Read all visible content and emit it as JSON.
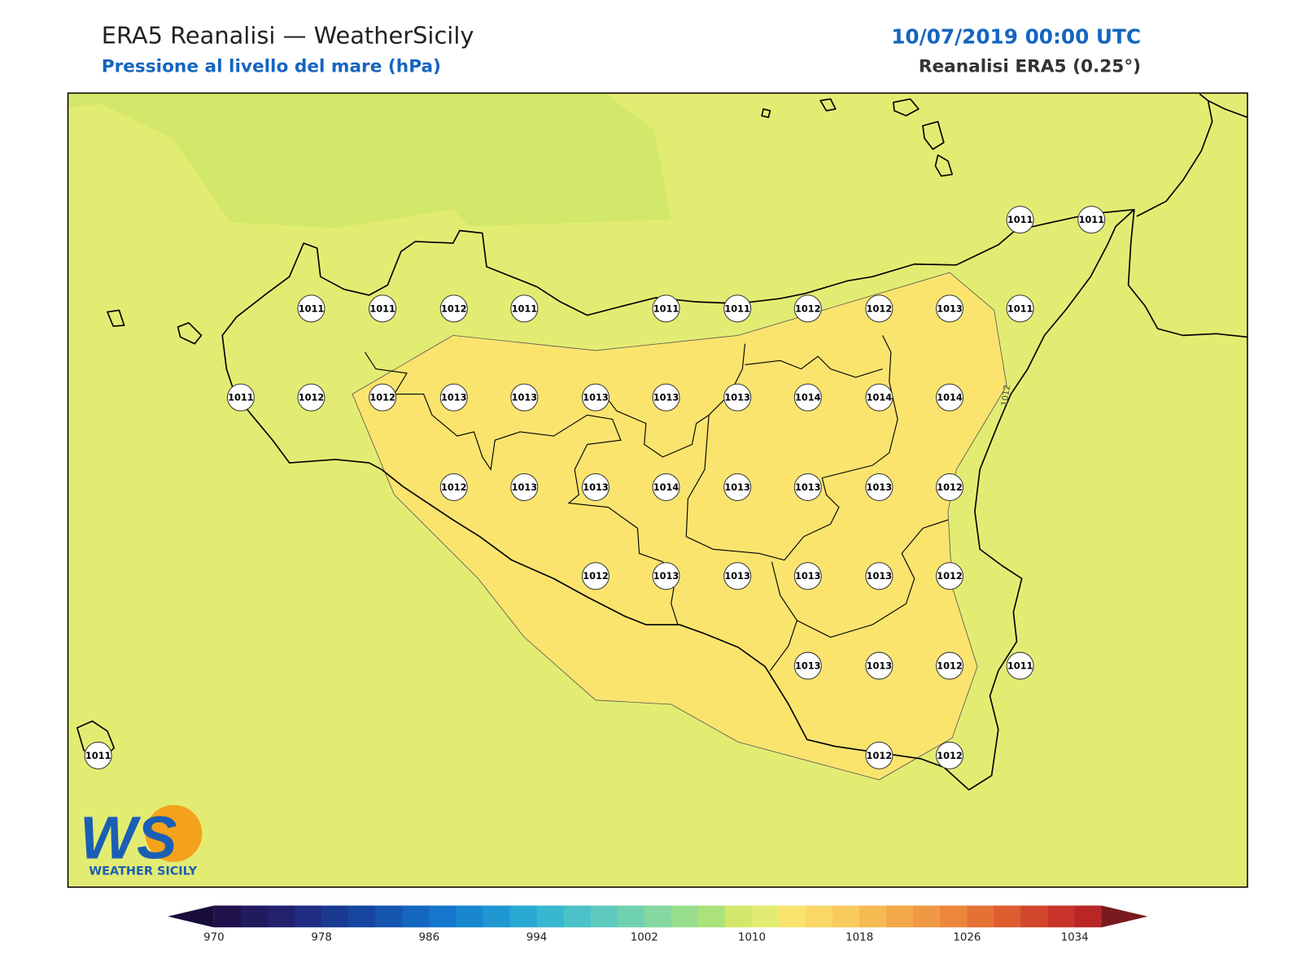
{
  "header": {
    "title": "ERA5 Reanalisi — WeatherSicily",
    "subtitle": "Pressione al livello del mare (hPa)",
    "datetime": "10/07/2019 00:00 UTC",
    "source": "Reanalisi ERA5 (0.25°)"
  },
  "stations": [
    1011,
    1011,
    1011,
    1011,
    1012,
    1011,
    1011,
    1011,
    1012,
    1012,
    1013,
    1011,
    1011,
    1012,
    1012,
    1013,
    1013,
    1013,
    1013,
    1013,
    1014,
    1014,
    1014,
    1012,
    1013,
    1013,
    1014,
    1013,
    1013,
    1013,
    1012,
    1012,
    1013,
    1013,
    1013,
    1013,
    1012,
    1013,
    1013,
    1012,
    1011,
    1011,
    1012,
    1012
  ],
  "contour_label": "1012",
  "colorbar": {
    "ticks": [
      970,
      978,
      986,
      994,
      1002,
      1010,
      1018,
      1026,
      1034
    ],
    "colors": [
      "#20124d",
      "#221a5f",
      "#23216e",
      "#1f2c80",
      "#1a3990",
      "#1746a0",
      "#1556b0",
      "#1466bf",
      "#1476cc",
      "#1887d0",
      "#2097d2",
      "#2aa8d4",
      "#38b8d0",
      "#4bc2c8",
      "#5ecabe",
      "#70d1b0",
      "#84d8a0",
      "#98dd8c",
      "#abe27a",
      "#d3e86a",
      "#e3ec72",
      "#fbe46e",
      "#fbd865",
      "#f9cb5c",
      "#f6bb53",
      "#f3a94a",
      "#f09843",
      "#ec863c",
      "#e57235",
      "#dd5c30",
      "#d2472c",
      "#c83429",
      "#b82626"
    ],
    "under_color": "#170c3a",
    "over_color": "#7a1a1e"
  },
  "logo": {
    "mark": "WS",
    "text": "WEATHER SICILY"
  }
}
